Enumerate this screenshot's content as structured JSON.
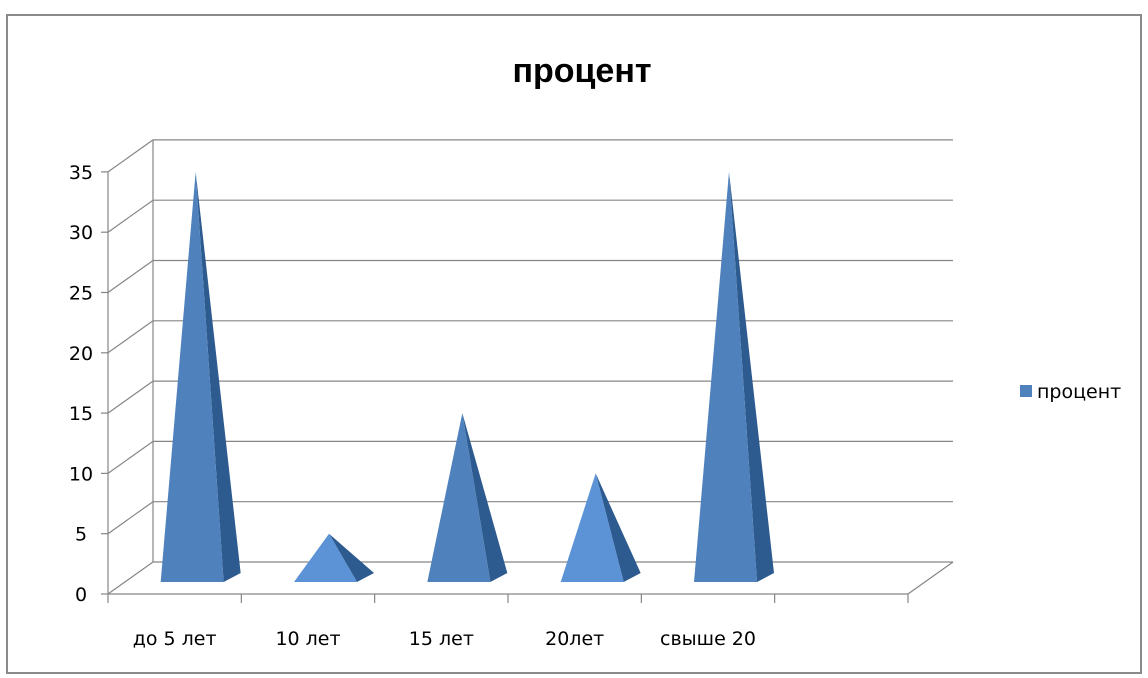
{
  "chart_data": {
    "type": "bar",
    "shape": "pyramid-3d",
    "title": "процент",
    "categories": [
      "до 5 лет",
      "10 лет",
      "15 лет",
      "20лет",
      "свыше 20"
    ],
    "series": [
      {
        "name": "процент",
        "values": [
          35,
          5,
          15,
          10,
          35
        ],
        "color": "#4F81BD"
      }
    ],
    "y_ticks": [
      "0",
      "5",
      "10",
      "15",
      "20",
      "25",
      "30",
      "35"
    ],
    "ylim": [
      0,
      35
    ],
    "grid": true,
    "legend_position": "right"
  }
}
